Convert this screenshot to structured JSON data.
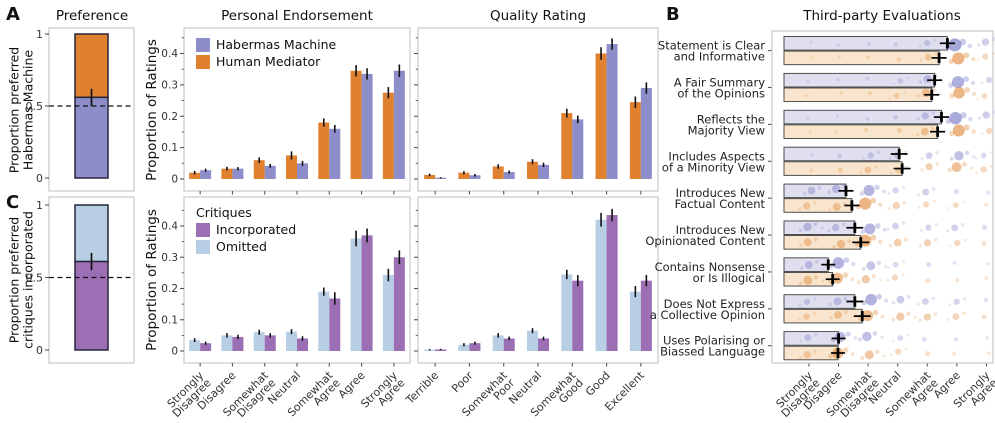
{
  "figure": {
    "panels": {
      "a": "A",
      "b": "B",
      "c": "C"
    }
  },
  "axis_labels": {
    "proportion_ratings": "Proportion of Ratings"
  },
  "legends": {
    "habermas_machine": "Habermas Machine",
    "human_mediator": "Human Mediator",
    "critiques_title": "Critiques",
    "incorporated": "Incorporated",
    "omitted": "Omitted"
  },
  "colors": {
    "habermas_purple": "#8c8dc9",
    "mediator_orange": "#e0812f",
    "incorporated_purple": "#9c6fb5",
    "omitted_blue": "#b8cee4",
    "bar_outline": "#26263a",
    "likert_purple_fill": "#e0dfef",
    "likert_orange_fill": "#f9e5cd",
    "dot_purple": "#6f70c2",
    "dot_orange": "#db7a22",
    "panel_border": "#c9c9c9",
    "tick": "#555555"
  },
  "scales": {
    "agreement": [
      [
        "Strongly",
        "Disagree"
      ],
      [
        "Disagree"
      ],
      [
        "Somewhat",
        "Disagree"
      ],
      [
        "Neutral"
      ],
      [
        "Somewhat",
        "Agree"
      ],
      [
        "Agree"
      ],
      [
        "Strongly",
        "Agree"
      ]
    ],
    "quality": [
      [
        "Terrible"
      ],
      [
        "Poor"
      ],
      [
        "Somewhat",
        "Poor"
      ],
      [
        "Neutral"
      ],
      [
        "Somewhat",
        "Good"
      ],
      [
        "Good"
      ],
      [
        "Excellent"
      ]
    ]
  },
  "chart_data": [
    {
      "id": "preference",
      "type": "stacked_bar",
      "title": "Preference",
      "ylabel": [
        "Proportion preferred",
        "Habermas Machine"
      ],
      "yticks": {
        "values": [
          0,
          0.5,
          1
        ],
        "labels": [
          "0",
          "0.5",
          "1"
        ]
      },
      "lower": {
        "label": "Habermas Machine",
        "value": 0.56,
        "color": "habermas_purple"
      },
      "upper": {
        "label": "Human Mediator",
        "value": 0.44,
        "color": "mediator_orange"
      },
      "error": 0.06,
      "reference_line": 0.5
    },
    {
      "id": "critique_preference",
      "type": "stacked_bar",
      "title": "",
      "ylabel": [
        "Proportion preferred",
        "critiques incorporated"
      ],
      "yticks": {
        "values": [
          0,
          0.5,
          1
        ],
        "labels": [
          "0",
          "0.5",
          "1"
        ]
      },
      "lower": {
        "label": "Incorporated",
        "value": 0.61,
        "color": "incorporated_purple"
      },
      "upper": {
        "label": "Omitted",
        "value": 0.39,
        "color": "omitted_blue"
      },
      "error": 0.06,
      "reference_line": 0.5
    },
    {
      "id": "personal_endorsement",
      "type": "grouped_bar",
      "title": "Personal Endorsement",
      "ylabel": "Proportion of Ratings",
      "categories": "agreement",
      "ylim": [
        0,
        0.48
      ],
      "yticks": {
        "values": [
          0,
          0.1,
          0.2,
          0.3,
          0.4
        ],
        "labels": [
          "0",
          "0.1",
          "0.2",
          "0.3",
          "0.4"
        ]
      },
      "series": [
        {
          "name": "Human Mediator",
          "color": "mediator_orange",
          "values": [
            0.02,
            0.033,
            0.06,
            0.075,
            0.18,
            0.345,
            0.275
          ],
          "errors": [
            0.006,
            0.006,
            0.009,
            0.013,
            0.013,
            0.018,
            0.018
          ]
        },
        {
          "name": "Habermas Machine",
          "color": "habermas_purple",
          "values": [
            0.028,
            0.033,
            0.042,
            0.05,
            0.16,
            0.335,
            0.345
          ],
          "errors": [
            0.005,
            0.005,
            0.006,
            0.008,
            0.012,
            0.018,
            0.02
          ]
        }
      ]
    },
    {
      "id": "quality_rating",
      "type": "grouped_bar",
      "title": "Quality Rating",
      "categories": "quality",
      "ylim": [
        0,
        0.48
      ],
      "yticks": {
        "values": [
          0,
          0.1,
          0.2,
          0.3,
          0.4
        ],
        "labels": [
          "0",
          "0.1",
          "0.2",
          "0.3",
          "0.4"
        ]
      },
      "series": [
        {
          "name": "Human Mediator",
          "color": "mediator_orange",
          "values": [
            0.013,
            0.02,
            0.04,
            0.055,
            0.21,
            0.4,
            0.245
          ],
          "errors": [
            0.004,
            0.005,
            0.007,
            0.008,
            0.014,
            0.02,
            0.018
          ]
        },
        {
          "name": "Habermas Machine",
          "color": "habermas_purple",
          "values": [
            0.004,
            0.012,
            0.022,
            0.045,
            0.19,
            0.43,
            0.29
          ],
          "errors": [
            0.002,
            0.004,
            0.005,
            0.007,
            0.012,
            0.018,
            0.018
          ]
        }
      ]
    },
    {
      "id": "critique_endorsement",
      "type": "grouped_bar",
      "title": "",
      "ylabel": "Proportion of Ratings",
      "categories": "agreement",
      "ylim": [
        0,
        0.49
      ],
      "yticks": {
        "values": [
          0,
          0.1,
          0.2,
          0.3,
          0.4
        ],
        "labels": [
          "0",
          "0.1",
          "0.2",
          "0.3",
          "0.4"
        ]
      },
      "series": [
        {
          "name": "Omitted",
          "color": "omitted_blue",
          "values": [
            0.035,
            0.05,
            0.06,
            0.062,
            0.19,
            0.36,
            0.243
          ],
          "errors": [
            0.006,
            0.007,
            0.008,
            0.008,
            0.013,
            0.025,
            0.02
          ]
        },
        {
          "name": "Incorporated",
          "color": "incorporated_purple",
          "values": [
            0.025,
            0.045,
            0.05,
            0.04,
            0.168,
            0.37,
            0.3
          ],
          "errors": [
            0.005,
            0.007,
            0.007,
            0.007,
            0.02,
            0.022,
            0.022
          ]
        }
      ]
    },
    {
      "id": "critique_quality",
      "type": "grouped_bar",
      "title": "",
      "categories": "quality",
      "ylim": [
        0,
        0.49
      ],
      "yticks": {
        "values": [
          0,
          0.1,
          0.2,
          0.3,
          0.4
        ],
        "labels": [
          "0",
          "0.1",
          "0.2",
          "0.3",
          "0.4"
        ]
      },
      "series": [
        {
          "name": "Omitted",
          "color": "omitted_blue",
          "values": [
            0.004,
            0.02,
            0.05,
            0.065,
            0.245,
            0.42,
            0.19
          ],
          "errors": [
            0.002,
            0.005,
            0.007,
            0.008,
            0.015,
            0.022,
            0.018
          ]
        },
        {
          "name": "Incorporated",
          "color": "incorporated_purple",
          "values": [
            0.005,
            0.025,
            0.04,
            0.04,
            0.225,
            0.435,
            0.225
          ],
          "errors": [
            0.002,
            0.005,
            0.006,
            0.006,
            0.018,
            0.02,
            0.018
          ]
        }
      ]
    },
    {
      "id": "third_party",
      "type": "likert_dot",
      "title": "Third-party Evaluations",
      "categories": "agreement",
      "series_names": [
        "Habermas Machine",
        "Human Mediator"
      ],
      "rows": [
        {
          "label": [
            "Statement is Clear",
            "and Informative"
          ],
          "hm": {
            "mean": 5.68,
            "err": 0.12,
            "dots": [
              0.02,
              0.04,
              0.07,
              0.12,
              0.3,
              0.95,
              0.4
            ]
          },
          "human": {
            "mean": 5.4,
            "err": 0.12,
            "dots": [
              0.03,
              0.05,
              0.09,
              0.15,
              0.35,
              0.85,
              0.3
            ]
          }
        },
        {
          "label": [
            "A Fair Summary",
            "of the Opinions"
          ],
          "hm": {
            "mean": 5.25,
            "err": 0.12,
            "dots": [
              0.02,
              0.05,
              0.1,
              0.22,
              0.45,
              0.85,
              0.3
            ]
          },
          "human": {
            "mean": 5.15,
            "err": 0.12,
            "dots": [
              0.03,
              0.06,
              0.12,
              0.25,
              0.5,
              0.8,
              0.25
            ]
          }
        },
        {
          "label": [
            "Reflects the",
            "Majority View"
          ],
          "hm": {
            "mean": 5.48,
            "err": 0.12,
            "dots": [
              0.02,
              0.04,
              0.08,
              0.15,
              0.4,
              0.9,
              0.4
            ]
          },
          "human": {
            "mean": 5.35,
            "err": 0.12,
            "dots": [
              0.04,
              0.06,
              0.1,
              0.2,
              0.45,
              0.85,
              0.3
            ]
          }
        },
        {
          "label": [
            "Includes Aspects",
            "of a Minority View"
          ],
          "hm": {
            "mean": 4.05,
            "err": 0.15,
            "dots": [
              0.05,
              0.15,
              0.3,
              0.35,
              0.35,
              0.6,
              0.25
            ]
          },
          "human": {
            "mean": 4.15,
            "err": 0.15,
            "dots": [
              0.05,
              0.2,
              0.35,
              0.3,
              0.4,
              0.65,
              0.3
            ]
          }
        },
        {
          "label": [
            "Introduces New",
            "Factual Content"
          ],
          "hm": {
            "mean": 2.25,
            "err": 0.12,
            "dots": [
              0.45,
              0.5,
              0.75,
              0.3,
              0.35,
              0.2,
              0.12
            ]
          },
          "human": {
            "mean": 2.45,
            "err": 0.12,
            "dots": [
              0.4,
              0.45,
              0.85,
              0.4,
              0.3,
              0.25,
              0.1
            ]
          }
        },
        {
          "label": [
            "Introduces New",
            "Opinionated Content"
          ],
          "hm": {
            "mean": 2.55,
            "err": 0.15,
            "dots": [
              0.5,
              0.4,
              0.75,
              0.35,
              0.3,
              0.35,
              0.2
            ]
          },
          "human": {
            "mean": 2.75,
            "err": 0.15,
            "dots": [
              0.45,
              0.5,
              0.85,
              0.45,
              0.4,
              0.3,
              0.15
            ]
          }
        },
        {
          "label": [
            "Contains Nonsense",
            "or Is Illogical"
          ],
          "hm": {
            "mean": 1.65,
            "err": 0.1,
            "dots": [
              0.45,
              0.8,
              0.55,
              0.25,
              0.18,
              0.1,
              0.05
            ]
          },
          "human": {
            "mean": 1.8,
            "err": 0.1,
            "dots": [
              0.55,
              0.75,
              0.5,
              0.3,
              0.18,
              0.1,
              0.05
            ]
          }
        },
        {
          "label": [
            "Does Not Express",
            "a Collective Opinion"
          ],
          "hm": {
            "mean": 2.55,
            "err": 0.15,
            "dots": [
              0.3,
              0.45,
              0.8,
              0.45,
              0.35,
              0.3,
              0.12
            ]
          },
          "human": {
            "mean": 2.8,
            "err": 0.15,
            "dots": [
              0.3,
              0.45,
              0.75,
              0.5,
              0.4,
              0.35,
              0.18
            ]
          }
        },
        {
          "label": [
            "Uses Polarising or",
            "Biassed Language"
          ],
          "hm": {
            "mean": 2.0,
            "err": 0.1,
            "dots": [
              0.35,
              0.7,
              0.6,
              0.25,
              0.18,
              0.12,
              0.05
            ]
          },
          "human": {
            "mean": 1.98,
            "err": 0.1,
            "dots": [
              0.4,
              0.75,
              0.55,
              0.3,
              0.18,
              0.1,
              0.05
            ]
          }
        }
      ]
    }
  ]
}
